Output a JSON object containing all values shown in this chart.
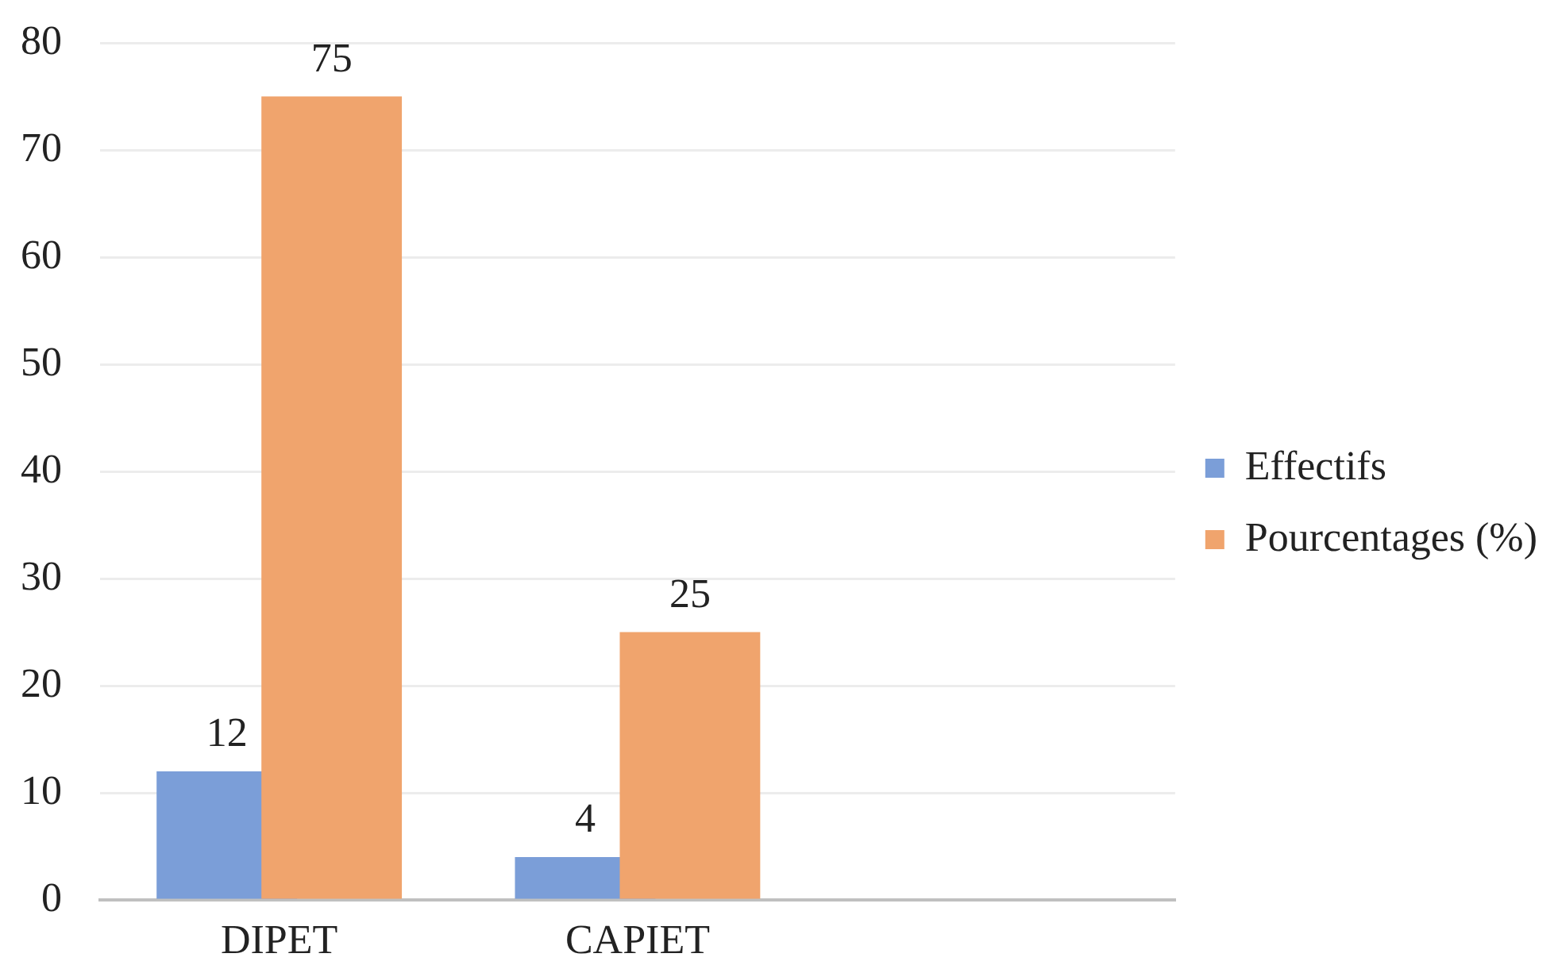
{
  "chart_data": {
    "type": "bar",
    "categories": [
      "DIPET",
      "CAPIET",
      null
    ],
    "series": [
      {
        "name": "Effectifs",
        "color": "#7b9ed8",
        "values": [
          12,
          4,
          null
        ]
      },
      {
        "name": "Pourcentages (%)",
        "color": "#f0a46d",
        "values": [
          75,
          25,
          null
        ]
      }
    ],
    "ylim": [
      0,
      80
    ],
    "yticks": [
      0,
      10,
      20,
      30,
      40,
      50,
      60,
      70,
      80
    ],
    "grid": "y",
    "legend": "right",
    "data_labels": true
  }
}
